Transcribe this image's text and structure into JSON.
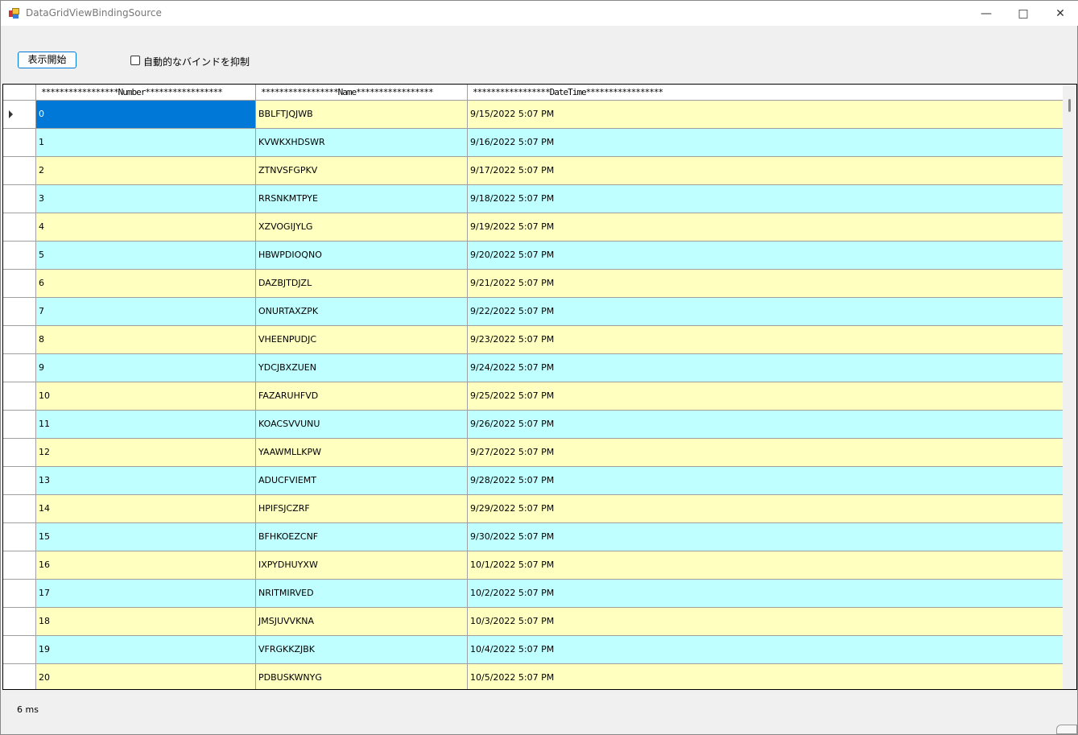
{
  "window": {
    "title": "DataGridViewBindingSource",
    "minimize_icon": "minimize-icon",
    "maximize_icon": "maximize-icon",
    "close_icon": "close-icon"
  },
  "toolbar": {
    "start_label": "表示開始",
    "suppress_bind_label": "自動的なバインドを抑制",
    "suppress_bind_checked": false
  },
  "grid": {
    "columns": [
      "*****************Number*****************",
      "*****************Name*****************",
      "*****************DateTime*****************"
    ],
    "selected_row": 0,
    "row_colors": {
      "even": "#ffffc0",
      "odd": "#c0ffff",
      "selected": "#0078d7"
    },
    "rows": [
      [
        "0",
        "BBLFTJQJWB",
        "9/15/2022 5:07 PM"
      ],
      [
        "1",
        "KVWKXHDSWR",
        "9/16/2022 5:07 PM"
      ],
      [
        "2",
        "ZTNVSFGPKV",
        "9/17/2022 5:07 PM"
      ],
      [
        "3",
        "RRSNKMTPYE",
        "9/18/2022 5:07 PM"
      ],
      [
        "4",
        "XZVOGIJYLG",
        "9/19/2022 5:07 PM"
      ],
      [
        "5",
        "HBWPDIOQNO",
        "9/20/2022 5:07 PM"
      ],
      [
        "6",
        "DAZBJTDJZL",
        "9/21/2022 5:07 PM"
      ],
      [
        "7",
        "ONURTAXZPK",
        "9/22/2022 5:07 PM"
      ],
      [
        "8",
        "VHEENPUDJC",
        "9/23/2022 5:07 PM"
      ],
      [
        "9",
        "YDCJBXZUEN",
        "9/24/2022 5:07 PM"
      ],
      [
        "10",
        "FAZARUHFVD",
        "9/25/2022 5:07 PM"
      ],
      [
        "11",
        "KOACSVVUNU",
        "9/26/2022 5:07 PM"
      ],
      [
        "12",
        "YAAWMLLKPW",
        "9/27/2022 5:07 PM"
      ],
      [
        "13",
        "ADUCFVIEMT",
        "9/28/2022 5:07 PM"
      ],
      [
        "14",
        "HPIFSJCZRF",
        "9/29/2022 5:07 PM"
      ],
      [
        "15",
        "BFHKOEZCNF",
        "9/30/2022 5:07 PM"
      ],
      [
        "16",
        "IXPYDHUYXW",
        "10/1/2022 5:07 PM"
      ],
      [
        "17",
        "NRITMIRVED",
        "10/2/2022 5:07 PM"
      ],
      [
        "18",
        "JMSJUVVKNA",
        "10/3/2022 5:07 PM"
      ],
      [
        "19",
        "VFRGKKZJBK",
        "10/4/2022 5:07 PM"
      ],
      [
        "20",
        "PDBUSKWNYG",
        "10/5/2022 5:07 PM"
      ]
    ]
  },
  "status": {
    "elapsed": "6 ms"
  }
}
